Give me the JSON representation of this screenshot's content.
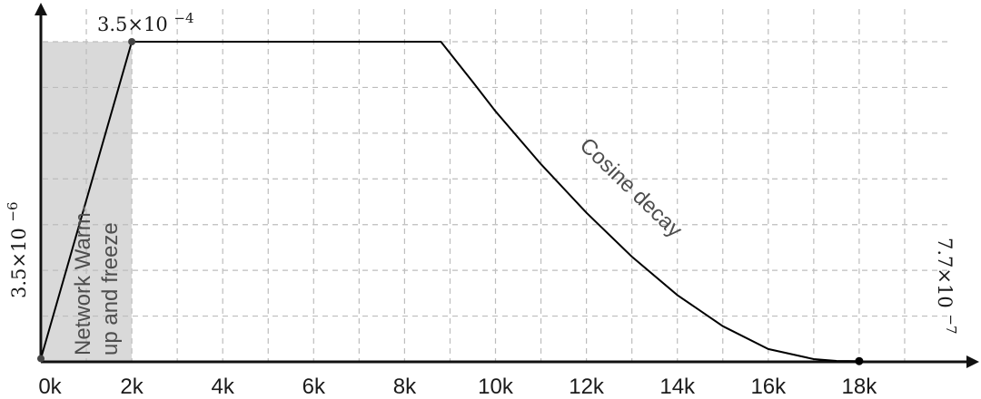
{
  "chart_data": {
    "type": "line",
    "title": "",
    "xlabel": "",
    "ylabel": "",
    "x_ticks": [
      "0k",
      "2k",
      "4k",
      "6k",
      "8k",
      "10k",
      "12k",
      "14k",
      "16k",
      "18k"
    ],
    "xlim": [
      0,
      20000
    ],
    "ylim": [
      0,
      0.00035
    ],
    "grid": true,
    "series": [
      {
        "name": "",
        "x": [
          0,
          2000,
          8800,
          9500,
          10000,
          11000,
          12000,
          13000,
          14000,
          15000,
          16000,
          17000,
          17500,
          18000
        ],
        "y": [
          3.5e-06,
          0.00035,
          0.00035,
          0.000306,
          0.000274,
          0.000216,
          0.000163,
          0.000115,
          7.3e-05,
          3.9e-05,
          1.4e-05,
          3e-06,
          1e-06,
          7.7e-07
        ]
      }
    ],
    "point_labels": {
      "start": {
        "mantissa": "3.5×10",
        "exponent": "−6"
      },
      "peak": {
        "mantissa": "3.5×10",
        "exponent": "−4"
      },
      "end": {
        "mantissa": "7.7×10",
        "exponent": "−7"
      }
    },
    "shaded_region": {
      "x_range": [
        0,
        2000
      ],
      "lines": [
        "Network Warm-",
        "up and freeze"
      ]
    },
    "annotations": [
      "Cosine decay"
    ]
  }
}
